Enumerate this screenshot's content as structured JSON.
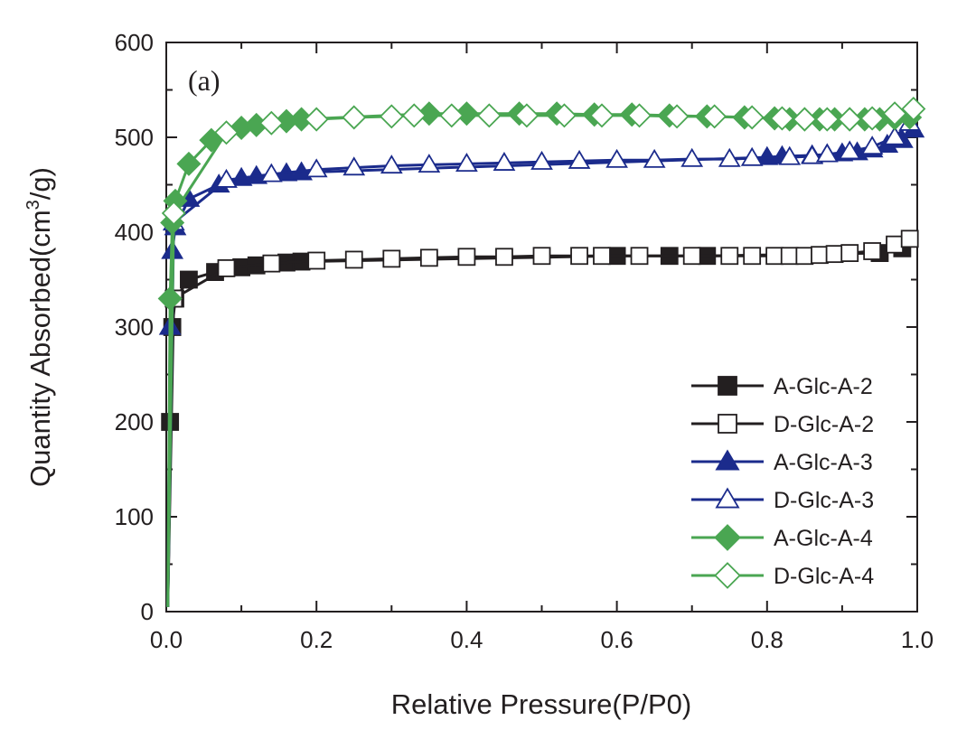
{
  "chart_data": {
    "type": "line",
    "panel_label": "(a)",
    "xlabel": "Relative Pressure(P/P0)",
    "ylabel_main": "Quantity Absorbed(cm",
    "ylabel_sup": "3",
    "ylabel_end": "/g)",
    "xlim": [
      0.0,
      1.0
    ],
    "ylim": [
      0,
      600
    ],
    "x_ticks": [
      "0.0",
      "0.2",
      "0.4",
      "0.6",
      "0.8",
      "1.0"
    ],
    "y_ticks": [
      "0",
      "100",
      "200",
      "300",
      "400",
      "500",
      "600"
    ],
    "grid": false,
    "legend_position": "bottom-right",
    "series": [
      {
        "name": "A-Glc-A-2",
        "color": "#231f20",
        "marker": "square",
        "filled": true,
        "x": [
          0.002,
          0.005,
          0.008,
          0.012,
          0.03,
          0.065,
          0.1,
          0.12,
          0.16,
          0.18,
          0.6,
          0.67,
          0.72,
          0.95,
          0.98
        ],
        "y": [
          5,
          200,
          300,
          330,
          350,
          358,
          363,
          365,
          368,
          369,
          375,
          375,
          375,
          378,
          383
        ]
      },
      {
        "name": "D-Glc-A-2",
        "color": "#231f20",
        "marker": "square",
        "filled": false,
        "x": [
          0.002,
          0.01,
          0.08,
          0.14,
          0.2,
          0.25,
          0.3,
          0.35,
          0.4,
          0.45,
          0.5,
          0.55,
          0.58,
          0.63,
          0.7,
          0.75,
          0.78,
          0.81,
          0.83,
          0.85,
          0.87,
          0.89,
          0.91,
          0.94,
          0.97,
          0.99
        ],
        "y": [
          5,
          330,
          362,
          367,
          370,
          371,
          372,
          373,
          374,
          374,
          375,
          375,
          375,
          375,
          375,
          375,
          375,
          375,
          375,
          375,
          376,
          377,
          378,
          380,
          387,
          393
        ]
      },
      {
        "name": "A-Glc-A-3",
        "color": "#1b2b8c",
        "marker": "triangle",
        "filled": true,
        "x": [
          0.002,
          0.005,
          0.008,
          0.012,
          0.03,
          0.07,
          0.1,
          0.12,
          0.16,
          0.18,
          0.8,
          0.82,
          0.86,
          0.88,
          0.9,
          0.92,
          0.94,
          0.96,
          0.98,
          0.995
        ],
        "y": [
          5,
          300,
          380,
          405,
          435,
          450,
          457,
          459,
          462,
          463,
          479,
          480,
          481,
          482,
          483,
          484,
          487,
          492,
          497,
          508
        ]
      },
      {
        "name": "D-Glc-A-3",
        "color": "#1b2b8c",
        "marker": "triangle",
        "filled": false,
        "x": [
          0.002,
          0.01,
          0.08,
          0.14,
          0.2,
          0.25,
          0.3,
          0.35,
          0.4,
          0.45,
          0.5,
          0.55,
          0.6,
          0.65,
          0.7,
          0.75,
          0.78,
          0.83,
          0.86,
          0.88,
          0.91,
          0.94,
          0.97,
          0.99
        ],
        "y": [
          5,
          410,
          455,
          461,
          466,
          468,
          470,
          471,
          472,
          473,
          474,
          475,
          476,
          476,
          477,
          477,
          478,
          479,
          480,
          482,
          485,
          490,
          500,
          515
        ]
      },
      {
        "name": "A-Glc-A-4",
        "color": "#4aa652",
        "marker": "diamond",
        "filled": true,
        "x": [
          0.002,
          0.005,
          0.008,
          0.012,
          0.03,
          0.06,
          0.1,
          0.12,
          0.16,
          0.18,
          0.35,
          0.4,
          0.47,
          0.52,
          0.57,
          0.62,
          0.67,
          0.72,
          0.77,
          0.81,
          0.83,
          0.85,
          0.87,
          0.89,
          0.91,
          0.93,
          0.95,
          0.97,
          0.99
        ],
        "y": [
          5,
          330,
          410,
          433,
          472,
          497,
          510,
          513,
          517,
          519,
          525,
          525,
          525,
          525,
          524,
          524,
          523,
          522,
          521,
          520,
          519,
          519,
          519,
          519,
          519,
          519,
          519,
          520,
          521
        ]
      },
      {
        "name": "D-Glc-A-4",
        "color": "#4aa652",
        "marker": "diamond",
        "filled": false,
        "x": [
          0.002,
          0.01,
          0.08,
          0.14,
          0.2,
          0.25,
          0.3,
          0.33,
          0.38,
          0.43,
          0.48,
          0.53,
          0.58,
          0.63,
          0.68,
          0.73,
          0.78,
          0.82,
          0.85,
          0.88,
          0.91,
          0.94,
          0.97,
          0.995
        ],
        "y": [
          5,
          420,
          505,
          515,
          519,
          521,
          522,
          523,
          523,
          523,
          523,
          523,
          523,
          523,
          522,
          522,
          521,
          520,
          519,
          519,
          519,
          520,
          525,
          530
        ]
      }
    ]
  }
}
